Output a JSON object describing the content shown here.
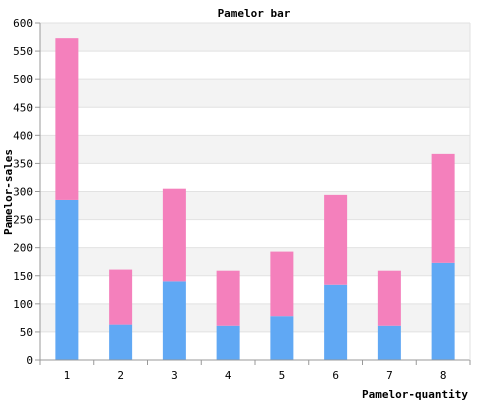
{
  "chart_data": {
    "type": "bar",
    "stacked": true,
    "title": "Pamelor bar",
    "xlabel": "Pamelor-quantity",
    "ylabel": "Pamelor-sales",
    "categories": [
      "1",
      "2",
      "3",
      "4",
      "5",
      "6",
      "7",
      "8"
    ],
    "series": [
      {
        "color": "#60a8f4",
        "values": [
          285,
          63,
          140,
          61,
          78,
          134,
          61,
          173
        ]
      },
      {
        "color": "#f480bc",
        "values": [
          288,
          98,
          165,
          98,
          115,
          160,
          98,
          194
        ]
      }
    ],
    "ylim": [
      0,
      600
    ],
    "yticks": [
      0,
      50,
      100,
      150,
      200,
      250,
      300,
      350,
      400,
      450,
      500,
      550,
      600
    ],
    "grid": true,
    "band_colors": [
      "#f3f3f3",
      "#ffffff"
    ]
  }
}
